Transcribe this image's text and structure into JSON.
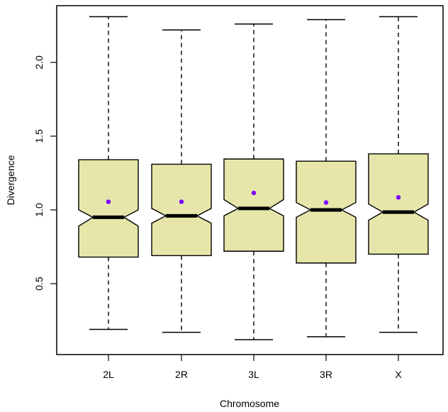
{
  "chart_data": {
    "type": "boxplot",
    "title": "",
    "xlabel": "Chromosome",
    "ylabel": "Divergence",
    "ylim": [
      0.0,
      2.42
    ],
    "yticks": [
      0.5,
      1.0,
      1.5,
      2.0
    ],
    "ytick_labels": [
      "0.5",
      "1.0",
      "1.5",
      "2.0"
    ],
    "notched": true,
    "box_fill": "#e6e6aa",
    "median_color": "#000000",
    "mean_color": "#7a00ff",
    "categories": [
      "2L",
      "2R",
      "3L",
      "3R",
      "X"
    ],
    "whisker_low": [
      0.19,
      0.17,
      0.12,
      0.14,
      0.17
    ],
    "q1": [
      0.68,
      0.69,
      0.72,
      0.64,
      0.7
    ],
    "notch_low": [
      0.89,
      0.91,
      0.96,
      0.95,
      0.93
    ],
    "median": [
      0.95,
      0.96,
      1.01,
      1.0,
      0.985
    ],
    "notch_high": [
      1.0,
      1.01,
      1.07,
      1.05,
      1.04
    ],
    "q3": [
      1.34,
      1.31,
      1.345,
      1.33,
      1.38
    ],
    "whisker_high": [
      2.31,
      2.22,
      2.26,
      2.29,
      2.31
    ],
    "mean": [
      1.055,
      1.055,
      1.115,
      1.05,
      1.085
    ]
  }
}
